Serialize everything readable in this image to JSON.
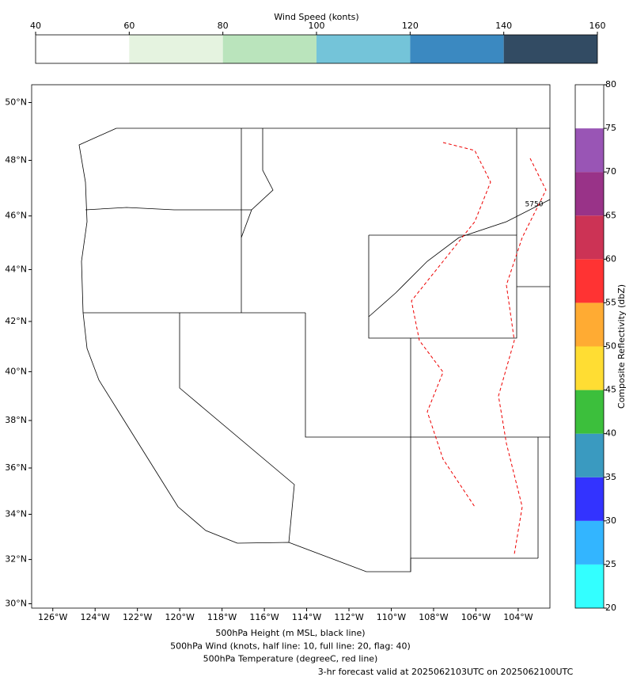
{
  "chart_data": {
    "type": "map",
    "colorbars": [
      {
        "label": "Wind Speed (konts)",
        "orientation": "horizontal",
        "ticks": [
          40,
          60,
          80,
          100,
          120,
          140,
          160
        ],
        "colors": [
          "#ffffff",
          "#e5f3e0",
          "#bae4bc",
          "#74c4d9",
          "#3b89c1",
          "#324b63"
        ]
      },
      {
        "label": "Composite Reflectivity (dbZ)",
        "orientation": "vertical",
        "ticks": [
          20,
          25,
          30,
          35,
          40,
          45,
          50,
          55,
          60,
          65,
          70,
          75,
          80
        ],
        "colors": [
          "#33ffff",
          "#33b5ff",
          "#3333ff",
          "#3a9ac0",
          "#3cbf3c",
          "#ffdd33",
          "#ffab33",
          "#ff3333",
          "#cc3355",
          "#993388",
          "#9955b5",
          "#ffffff"
        ]
      }
    ],
    "xlim": [
      -127,
      -102.5
    ],
    "ylim": [
      29.8,
      50.6
    ],
    "xticks": [
      {
        "value": -126,
        "label": "126°W"
      },
      {
        "value": -124,
        "label": "124°W"
      },
      {
        "value": -122,
        "label": "122°W"
      },
      {
        "value": -120,
        "label": "120°W"
      },
      {
        "value": -118,
        "label": "118°W"
      },
      {
        "value": -116,
        "label": "116°W"
      },
      {
        "value": -114,
        "label": "114°W"
      },
      {
        "value": -112,
        "label": "112°W"
      },
      {
        "value": -110,
        "label": "110°W"
      },
      {
        "value": -108,
        "label": "108°W"
      },
      {
        "value": -106,
        "label": "106°W"
      },
      {
        "value": -104,
        "label": "104°W"
      }
    ],
    "yticks": [
      {
        "value": 30,
        "label": "30°N"
      },
      {
        "value": 32,
        "label": "32°N"
      },
      {
        "value": 34,
        "label": "34°N"
      },
      {
        "value": 36,
        "label": "36°N"
      },
      {
        "value": 38,
        "label": "38°N"
      },
      {
        "value": 40,
        "label": "40°N"
      },
      {
        "value": 42,
        "label": "42°N"
      },
      {
        "value": 44,
        "label": "44°N"
      },
      {
        "value": 46,
        "label": "46°N"
      },
      {
        "value": 48,
        "label": "48°N"
      },
      {
        "value": 50,
        "label": "50°N"
      }
    ],
    "contour_label": "5750",
    "captions": [
      {
        "text": "500hPa Height (m MSL, black line)",
        "color": "#000000"
      },
      {
        "text": "500hPa Wind (knots, half line: 10, full line: 20, flag: 40)",
        "color": "#808080"
      },
      {
        "text": "500hPa Temperature (degreeC, red line)",
        "color": "#ff0000"
      },
      {
        "text": "3-hr forecast valid at 2025062103UTC on 2025062100UTC",
        "color": "#ff0000"
      }
    ]
  }
}
